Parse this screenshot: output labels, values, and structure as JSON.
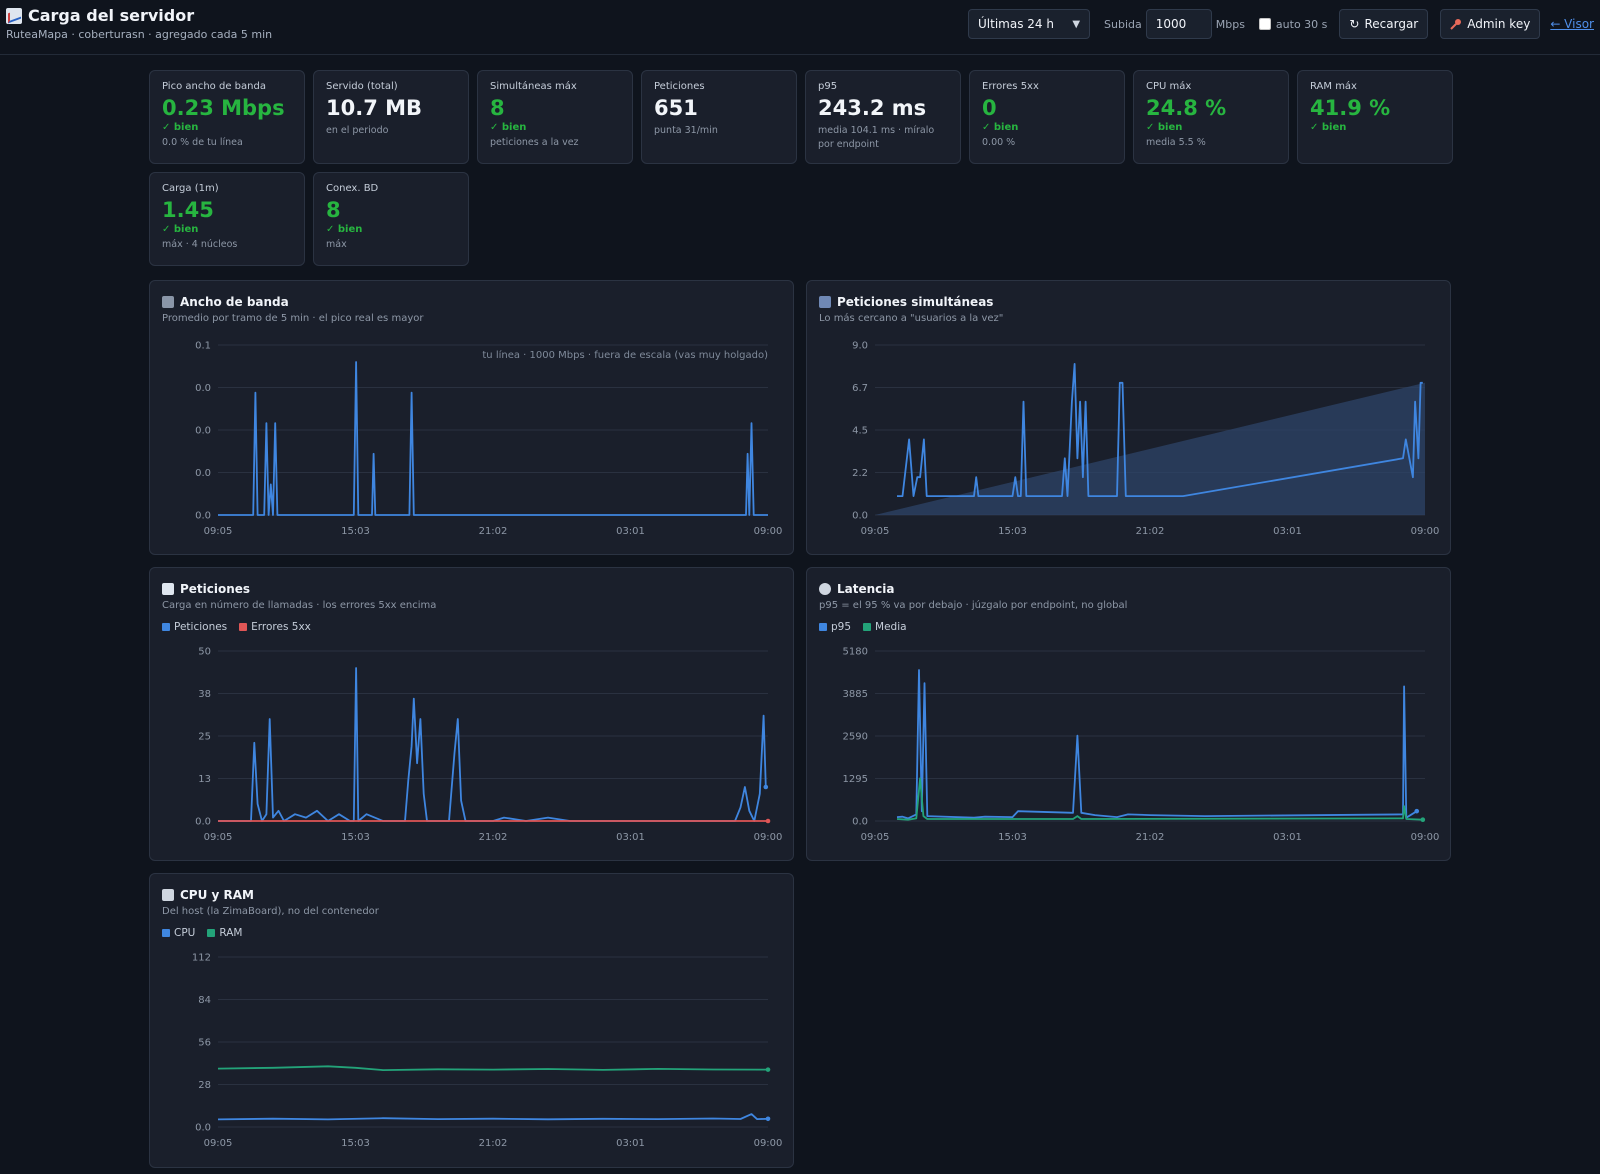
{
  "header": {
    "title": "Carga del servidor",
    "subtitle": "RuteaMapa · coberturasn · agregado cada 5 min",
    "range_select": "Últimas 24 h",
    "upload_label": "Subida",
    "upload_value": "1000",
    "upload_unit": "Mbps",
    "auto_label": "auto 30 s",
    "reload_label": "Recargar",
    "admin_label": "Admin key",
    "viewer_link": "← Visor"
  },
  "stats": [
    {
      "label": "Pico ancho de banda",
      "value": "0.23 Mbps",
      "status": "✓ bien",
      "note": "0.0 % de tu línea",
      "good": true
    },
    {
      "label": "Servido (total)",
      "value": "10.7 MB",
      "status": "",
      "note": "en el periodo",
      "good": false
    },
    {
      "label": "Simultáneas máx",
      "value": "8",
      "status": "✓ bien",
      "note": "peticiones a la vez",
      "good": true
    },
    {
      "label": "Peticiones",
      "value": "651",
      "status": "",
      "note": "punta 31/min",
      "good": false
    },
    {
      "label": "p95",
      "value": "243.2 ms",
      "status": "",
      "note": "media 104.1 ms · míralo por endpoint",
      "good": false
    },
    {
      "label": "Errores 5xx",
      "value": "0",
      "status": "✓ bien",
      "note": "0.00 %",
      "good": true
    },
    {
      "label": "CPU máx",
      "value": "24.8 %",
      "status": "✓ bien",
      "note": "media 5.5 %",
      "good": true
    },
    {
      "label": "RAM máx",
      "value": "41.9 %",
      "status": "✓ bien",
      "note": "",
      "good": true
    },
    {
      "label": "Carga (1m)",
      "value": "1.45",
      "status": "✓ bien",
      "note": "máx · 4 núcleos",
      "good": true
    },
    {
      "label": "Conex. BD",
      "value": "8",
      "status": "✓ bien",
      "note": "máx",
      "good": true
    }
  ],
  "colors": {
    "blue": "#3f86e0",
    "red": "#e05656",
    "green": "#23a379",
    "good": "#27b540",
    "grid": "#2a3140"
  },
  "panels": {
    "bandwidth": {
      "title": "Ancho de banda",
      "subtitle": "Promedio por tramo de 5 min · el pico real es mayor",
      "icon": "satellite-icon",
      "note": "tu línea · 1000 Mbps · fuera de escala (vas muy holgado)"
    },
    "concurrent": {
      "title": "Peticiones simultáneas",
      "subtitle": "Lo más cercano a \"usuarios a la vez\"",
      "icon": "users-icon"
    },
    "requests": {
      "title": "Peticiones",
      "subtitle": "Carga en número de llamadas · los errores 5xx encima",
      "icon": "chart-icon",
      "legend": [
        "Peticiones",
        "Errores 5xx"
      ]
    },
    "latency": {
      "title": "Latencia",
      "subtitle": "p95 = el 95 % va por debajo · júzgalo por endpoint, no global",
      "icon": "stopwatch-icon",
      "legend": [
        "p95",
        "Media"
      ]
    },
    "cpuram": {
      "title": "CPU y RAM",
      "subtitle": "Del host (la ZimaBoard), no del contenedor",
      "icon": "memory-icon",
      "legend": [
        "CPU",
        "RAM"
      ]
    }
  },
  "chart_data": [
    {
      "id": "bandwidth",
      "type": "line",
      "x_ticks": [
        "09:05",
        "15:03",
        "21:02",
        "03:01",
        "09:00"
      ],
      "y_ticks": [
        "0.1",
        "0.0",
        "0.0",
        "0.0",
        "0.0"
      ],
      "ylim": [
        0,
        0.1
      ],
      "series": [
        {
          "color": "#3f86e0",
          "points": [
            [
              0,
              0
            ],
            [
              0.064,
              0
            ],
            [
              0.068,
              0.072
            ],
            [
              0.072,
              0
            ],
            [
              0.084,
              0
            ],
            [
              0.088,
              0.054
            ],
            [
              0.092,
              0
            ],
            [
              0.096,
              0.018
            ],
            [
              0.1,
              0
            ],
            [
              0.104,
              0.054
            ],
            [
              0.108,
              0
            ],
            [
              0.247,
              0
            ],
            [
              0.251,
              0.09
            ],
            [
              0.255,
              0
            ],
            [
              0.28,
              0
            ],
            [
              0.283,
              0.036
            ],
            [
              0.286,
              0
            ],
            [
              0.348,
              0
            ],
            [
              0.352,
              0.072
            ],
            [
              0.356,
              0
            ],
            [
              0.96,
              0
            ],
            [
              0.963,
              0.036
            ],
            [
              0.966,
              0
            ],
            [
              0.97,
              0.054
            ],
            [
              0.974,
              0
            ],
            [
              1,
              0
            ]
          ]
        }
      ]
    },
    {
      "id": "concurrent",
      "type": "line",
      "x_ticks": [
        "09:05",
        "15:03",
        "21:02",
        "03:01",
        "09:00"
      ],
      "y_ticks": [
        "9.0",
        "6.7",
        "4.5",
        "2.2",
        "0.0"
      ],
      "ylim": [
        0,
        9
      ],
      "area": [
        [
          0,
          0
        ],
        [
          1,
          7
        ]
      ],
      "series": [
        {
          "color": "#3f86e0",
          "points": [
            [
              0.04,
              1
            ],
            [
              0.05,
              1
            ],
            [
              0.062,
              4
            ],
            [
              0.07,
              1
            ],
            [
              0.077,
              2
            ],
            [
              0.082,
              2
            ],
            [
              0.089,
              4
            ],
            [
              0.094,
              1
            ],
            [
              0.18,
              1
            ],
            [
              0.184,
              2
            ],
            [
              0.188,
              1
            ],
            [
              0.2,
              1
            ],
            [
              0.205,
              1
            ],
            [
              0.25,
              1
            ],
            [
              0.255,
              2
            ],
            [
              0.26,
              1
            ],
            [
              0.265,
              1
            ],
            [
              0.27,
              6
            ],
            [
              0.275,
              1
            ],
            [
              0.34,
              1
            ],
            [
              0.345,
              3
            ],
            [
              0.35,
              1
            ],
            [
              0.358,
              6
            ],
            [
              0.363,
              8
            ],
            [
              0.368,
              3
            ],
            [
              0.373,
              6
            ],
            [
              0.378,
              2
            ],
            [
              0.383,
              6
            ],
            [
              0.388,
              1
            ],
            [
              0.44,
              1
            ],
            [
              0.445,
              7
            ],
            [
              0.45,
              7
            ],
            [
              0.456,
              1
            ],
            [
              0.49,
              1
            ],
            [
              0.5,
              1
            ],
            [
              0.51,
              1
            ],
            [
              0.55,
              1
            ],
            [
              0.56,
              1
            ],
            [
              0.96,
              3
            ],
            [
              0.965,
              4
            ],
            [
              0.978,
              2
            ],
            [
              0.982,
              6
            ],
            [
              0.988,
              3
            ],
            [
              0.992,
              7
            ],
            [
              0.996,
              7
            ]
          ]
        }
      ]
    },
    {
      "id": "requests",
      "type": "line",
      "x_ticks": [
        "09:05",
        "15:03",
        "21:02",
        "03:01",
        "09:00"
      ],
      "y_ticks": [
        "50",
        "38",
        "25",
        "13",
        "0.0"
      ],
      "ylim": [
        0,
        50
      ],
      "series": [
        {
          "name": "Peticiones",
          "color": "#3f86e0",
          "points": [
            [
              0,
              0
            ],
            [
              0.06,
              0
            ],
            [
              0.066,
              23
            ],
            [
              0.072,
              5
            ],
            [
              0.08,
              0
            ],
            [
              0.088,
              2
            ],
            [
              0.094,
              30
            ],
            [
              0.1,
              1
            ],
            [
              0.11,
              3
            ],
            [
              0.12,
              0
            ],
            [
              0.14,
              2
            ],
            [
              0.16,
              1
            ],
            [
              0.18,
              3
            ],
            [
              0.2,
              0
            ],
            [
              0.22,
              2
            ],
            [
              0.24,
              0
            ],
            [
              0.247,
              0
            ],
            [
              0.251,
              45
            ],
            [
              0.255,
              0
            ],
            [
              0.27,
              2
            ],
            [
              0.3,
              0
            ],
            [
              0.34,
              0
            ],
            [
              0.346,
              12
            ],
            [
              0.352,
              22
            ],
            [
              0.356,
              36
            ],
            [
              0.362,
              17
            ],
            [
              0.368,
              30
            ],
            [
              0.374,
              8
            ],
            [
              0.38,
              0
            ],
            [
              0.42,
              0
            ],
            [
              0.43,
              20
            ],
            [
              0.436,
              30
            ],
            [
              0.442,
              6
            ],
            [
              0.45,
              0
            ],
            [
              0.5,
              0
            ],
            [
              0.52,
              1
            ],
            [
              0.56,
              0
            ],
            [
              0.6,
              1
            ],
            [
              0.64,
              0
            ],
            [
              0.7,
              0
            ],
            [
              0.94,
              0
            ],
            [
              0.95,
              4
            ],
            [
              0.958,
              10
            ],
            [
              0.966,
              3
            ],
            [
              0.975,
              0
            ],
            [
              0.985,
              8
            ],
            [
              0.992,
              31
            ],
            [
              0.996,
              10
            ]
          ]
        },
        {
          "name": "Errores 5xx",
          "color": "#e05656",
          "points": [
            [
              0,
              0
            ],
            [
              1,
              0
            ]
          ]
        }
      ]
    },
    {
      "id": "latency",
      "type": "line",
      "x_ticks": [
        "09:05",
        "15:03",
        "21:02",
        "03:01",
        "09:00"
      ],
      "y_ticks": [
        "5180",
        "3885",
        "2590",
        "1295",
        "0.0"
      ],
      "ylim": [
        0,
        5180
      ],
      "series": [
        {
          "name": "p95",
          "color": "#3f86e0",
          "points": [
            [
              0.04,
              120
            ],
            [
              0.05,
              130
            ],
            [
              0.06,
              80
            ],
            [
              0.075,
              200
            ],
            [
              0.08,
              4600
            ],
            [
              0.085,
              300
            ],
            [
              0.09,
              4200
            ],
            [
              0.095,
              150
            ],
            [
              0.18,
              100
            ],
            [
              0.2,
              130
            ],
            [
              0.25,
              120
            ],
            [
              0.26,
              300
            ],
            [
              0.36,
              250
            ],
            [
              0.368,
              2600
            ],
            [
              0.375,
              250
            ],
            [
              0.4,
              180
            ],
            [
              0.44,
              120
            ],
            [
              0.46,
              200
            ],
            [
              0.5,
              180
            ],
            [
              0.6,
              150
            ],
            [
              0.96,
              200
            ],
            [
              0.962,
              4100
            ],
            [
              0.966,
              100
            ],
            [
              0.985,
              300
            ]
          ]
        },
        {
          "name": "Media",
          "color": "#23a379",
          "points": [
            [
              0.04,
              60
            ],
            [
              0.06,
              40
            ],
            [
              0.075,
              80
            ],
            [
              0.082,
              1300
            ],
            [
              0.088,
              150
            ],
            [
              0.095,
              60
            ],
            [
              0.36,
              60
            ],
            [
              0.368,
              150
            ],
            [
              0.375,
              60
            ],
            [
              0.96,
              80
            ],
            [
              0.962,
              450
            ],
            [
              0.966,
              60
            ],
            [
              0.996,
              40
            ]
          ]
        }
      ]
    },
    {
      "id": "cpuram",
      "type": "line",
      "x_ticks": [
        "09:05",
        "15:03",
        "21:02",
        "03:01",
        "09:00"
      ],
      "y_ticks": [
        "112",
        "84",
        "56",
        "28",
        "0.0"
      ],
      "ylim": [
        0,
        112
      ],
      "series": [
        {
          "name": "CPU",
          "color": "#3f86e0",
          "points": [
            [
              0,
              5
            ],
            [
              0.1,
              5.5
            ],
            [
              0.2,
              5
            ],
            [
              0.3,
              5.8
            ],
            [
              0.4,
              5.2
            ],
            [
              0.5,
              5.5
            ],
            [
              0.6,
              5.1
            ],
            [
              0.7,
              5.4
            ],
            [
              0.8,
              5.2
            ],
            [
              0.9,
              5.6
            ],
            [
              0.95,
              5.3
            ],
            [
              0.97,
              8.5
            ],
            [
              0.98,
              5.2
            ],
            [
              1,
              5.4
            ]
          ]
        },
        {
          "name": "RAM",
          "color": "#23a379",
          "points": [
            [
              0,
              38.5
            ],
            [
              0.1,
              39
            ],
            [
              0.2,
              40
            ],
            [
              0.25,
              39
            ],
            [
              0.3,
              37.5
            ],
            [
              0.4,
              38
            ],
            [
              0.5,
              37.8
            ],
            [
              0.6,
              38.2
            ],
            [
              0.7,
              37.6
            ],
            [
              0.8,
              38.3
            ],
            [
              0.9,
              37.9
            ],
            [
              1,
              37.8
            ]
          ]
        }
      ]
    }
  ]
}
